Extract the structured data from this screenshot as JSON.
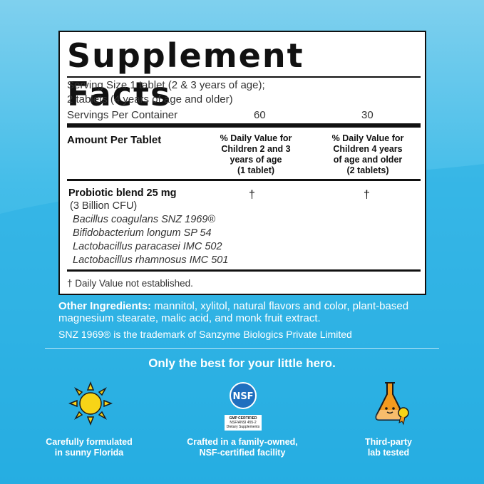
{
  "facts": {
    "title": "Supplement Facts",
    "serving_size_line1": "Serving Size 1 tablet (2 & 3 years of age);",
    "serving_size_line2": "2 tablets (4 years of age and older)",
    "servings_label": "Servings Per Container",
    "servings_col1": "60",
    "servings_col2": "30",
    "amount_header": "Amount Per Tablet",
    "dv_col1": [
      "% Daily Value for",
      "Children 2 and 3",
      "years of age",
      "(1 tablet)"
    ],
    "dv_col2": [
      "% Daily Value for",
      "Children 4 years",
      "of age and older",
      "(2 tablets)"
    ],
    "ingredient_name": "Probiotic blend 25 mg",
    "ingredient_cfu": "(3 Billion CFU)",
    "dv_mark1": "†",
    "dv_mark2": "†",
    "strains": [
      "Bacillus coagulans SNZ 1969®",
      "Bifidobacterium longum SP 54",
      "Lactobacillus paracasei  IMC 502",
      "Lactobacillus rhamnosus IMC 501"
    ],
    "footnote": "† Daily Value not established."
  },
  "other_ingredients": {
    "label": "Other Ingredients:",
    "text_line1": " mannitol, xylitol, natural flavors and color, plant-based",
    "text_line2": "magnesium stearate, malic acid, and monk fruit extract."
  },
  "trademark": "SNZ 1969® is the trademark of Sanzyme Biologics Private Limited",
  "tagline": "Only the best for your little hero.",
  "features": [
    {
      "icon": "sun-icon",
      "label_line1": "Carefully formulated",
      "label_line2": "in sunny Florida"
    },
    {
      "icon": "nsf-gmp-icon",
      "label_line1": "Crafted in a family-owned,",
      "label_line2": "NSF-certified facility",
      "badge_top": "NSF",
      "badge_line1": "GMP CERTIFIED",
      "badge_line2": "NSF/ANSI 455-2",
      "badge_line3": "Dietary Supplements"
    },
    {
      "icon": "lab-flask-icon",
      "label_line1": "Third-party",
      "label_line2": "lab tested"
    }
  ],
  "colors": {
    "sky_light": "#7fd0ee",
    "sky_deep": "#1fa9df",
    "sun_yellow": "#f7d417",
    "flask_orange": "#f39a1e",
    "nsf_blue": "#1f6fbf"
  }
}
